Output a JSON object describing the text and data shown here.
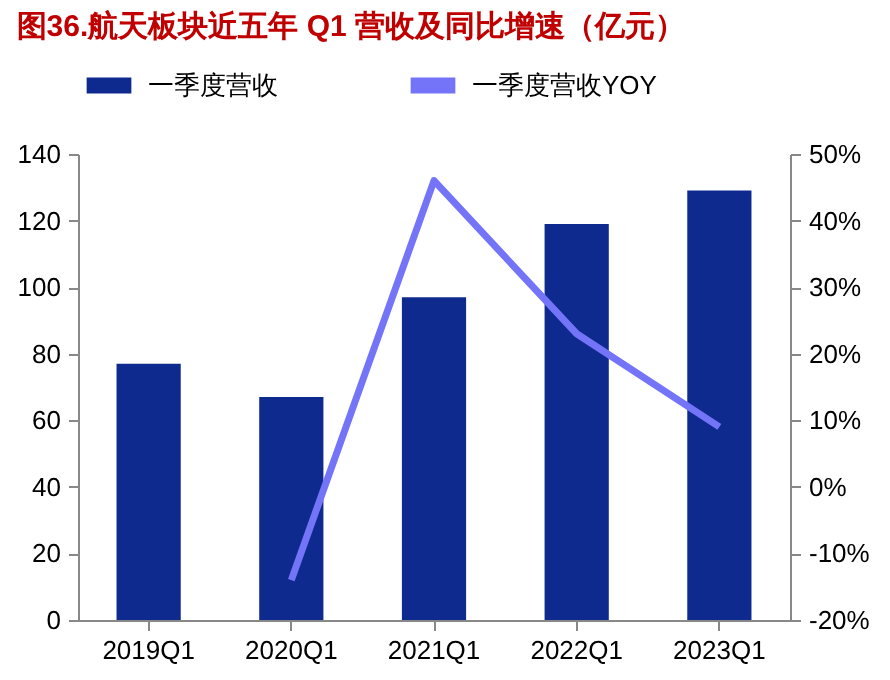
{
  "chart_data": {
    "type": "bar",
    "title": "图36.航天板块近五年 Q1 营收及同比增速（亿元）",
    "categories": [
      "2019Q1",
      "2020Q1",
      "2021Q1",
      "2022Q1",
      "2023Q1"
    ],
    "series": [
      {
        "name": "一季度营收",
        "color": "#0f2a8f",
        "values": [
          77,
          67,
          97,
          119,
          129
        ]
      },
      {
        "name": "一季度营收YOY",
        "type": "line",
        "axis": "y2",
        "color": "#7474f9",
        "values": [
          null,
          -14,
          46,
          23,
          9
        ]
      }
    ],
    "ylim": [
      0,
      140
    ],
    "yticks": [
      0,
      20,
      40,
      60,
      80,
      100,
      120,
      140
    ],
    "y2lim": [
      -20,
      50
    ],
    "y2ticks": [
      {
        "value": -20,
        "label": "-20%"
      },
      {
        "value": -10,
        "label": "-10%"
      },
      {
        "value": 0,
        "label": "0%"
      },
      {
        "value": 10,
        "label": "10%"
      },
      {
        "value": 20,
        "label": "20%"
      },
      {
        "value": 30,
        "label": "30%"
      },
      {
        "value": 40,
        "label": "40%"
      },
      {
        "value": 50,
        "label": "50%"
      }
    ],
    "grid": false,
    "legend": "top",
    "line_style": "solid",
    "marker": "none"
  }
}
